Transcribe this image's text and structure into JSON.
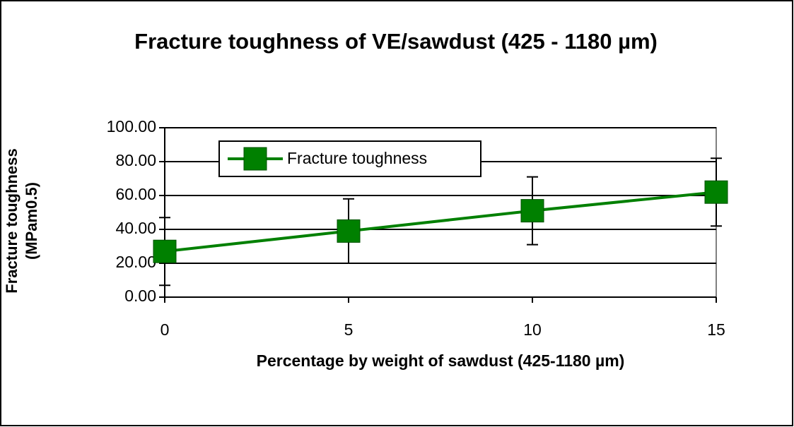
{
  "chart_data": {
    "type": "line",
    "title": "Fracture toughness of VE/sawdust (425 - 1180 µm)",
    "x_label": "Percentage by weight of sawdust (425-1180 µm)",
    "y_label": "Fracture toughness (MPam0.5)",
    "x": [
      0,
      5,
      10,
      15
    ],
    "series": [
      {
        "name": "Fracture toughness",
        "color": "#008000",
        "values": [
          27,
          39,
          51,
          62
        ],
        "errors": [
          20,
          19,
          20,
          20
        ]
      }
    ],
    "xlim": [
      0,
      15
    ],
    "xticks": [
      0,
      5,
      10,
      15
    ],
    "ylim": [
      0,
      100
    ],
    "yticks": [
      {
        "value": 0,
        "label": "0.00"
      },
      {
        "value": 20,
        "label": "20.00"
      },
      {
        "value": 40,
        "label": "40.00"
      },
      {
        "value": 60,
        "label": "60.00"
      },
      {
        "value": 80,
        "label": "80.00"
      },
      {
        "value": 100,
        "label": "100.00"
      }
    ],
    "grid": true,
    "legend": "upper left"
  }
}
